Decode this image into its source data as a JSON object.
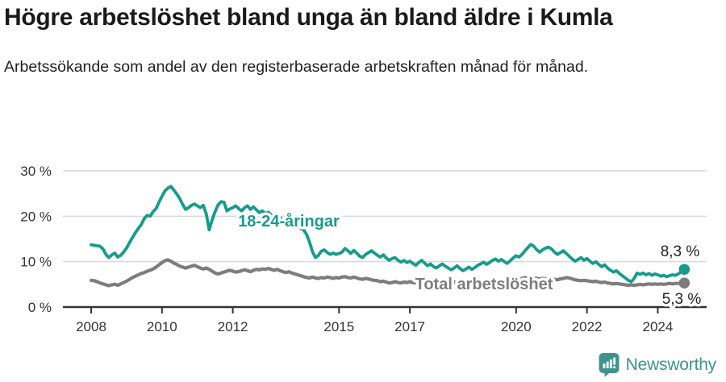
{
  "header": {
    "title": "Högre arbetslöshet bland unga än bland äldre i Kumla",
    "subtitle": "Arbetssökande som andel av den registerbaserade arbetskraften månad för månad."
  },
  "chart": {
    "series_label_youth": "18-24-åringar",
    "series_label_total": "Total arbetslöshet",
    "end_value_youth": "8,3 %",
    "end_value_total": "5,3 %"
  },
  "chart_data": {
    "type": "line",
    "title": "Högre arbetslöshet bland unga än bland äldre i Kumla",
    "subtitle": "Arbetssökande som andel av den registerbaserade arbetskraften månad för månad.",
    "unit": "percent of registered labour force",
    "x_interval": "monthly",
    "x_start": "2008-01",
    "x_end": "2024-10",
    "x_tick_years": [
      "2008",
      "2010",
      "2012",
      "2015",
      "2017",
      "2020",
      "2022",
      "2024"
    ],
    "y_ticks": [
      0,
      10,
      20,
      30
    ],
    "y_tick_labels": [
      "0 %",
      "10 %",
      "20 %",
      "30 %"
    ],
    "ylim": [
      0,
      30
    ],
    "grid": "horizontal",
    "legend_position": "inline-labels",
    "series": [
      {
        "name": "18-24-åringar",
        "color": "#179b8c",
        "end_label": "8,3 %",
        "last_value": 8.3,
        "values": [
          13.7,
          13.6,
          13.5,
          13.4,
          12.8,
          11.6,
          10.9,
          11.5,
          11.9,
          11.0,
          11.4,
          12.1,
          13.0,
          14.2,
          15.3,
          16.4,
          17.3,
          18.2,
          19.5,
          20.2,
          20.0,
          21.0,
          21.7,
          23.1,
          24.4,
          25.6,
          26.2,
          26.6,
          25.8,
          24.9,
          23.9,
          22.6,
          21.5,
          21.9,
          22.4,
          22.7,
          22.3,
          21.9,
          22.4,
          20.5,
          17.0,
          19.2,
          21.0,
          22.5,
          23.2,
          23.1,
          21.2,
          21.6,
          21.9,
          22.3,
          21.7,
          21.2,
          21.9,
          22.3,
          21.5,
          22.1,
          21.4,
          20.8,
          21.2,
          20.6,
          20.9,
          20.3,
          19.8,
          20.4,
          19.7,
          19.0,
          18.4,
          18.9,
          18.2,
          17.6,
          17.9,
          17.3,
          17.0,
          16.0,
          14.3,
          12.2,
          10.9,
          11.4,
          12.3,
          12.6,
          12.0,
          11.6,
          11.9,
          11.6,
          11.8,
          12.1,
          12.9,
          12.4,
          11.8,
          12.5,
          11.9,
          11.2,
          10.9,
          11.6,
          12.0,
          12.4,
          11.9,
          11.4,
          11.0,
          11.5,
          10.8,
          10.3,
          10.7,
          10.9,
          10.3,
          9.9,
          10.3,
          9.8,
          10.1,
          9.6,
          9.2,
          9.8,
          10.3,
          9.7,
          9.1,
          9.5,
          8.9,
          8.6,
          9.1,
          9.5,
          9.0,
          8.6,
          8.2,
          8.6,
          9.1,
          8.5,
          8.0,
          8.4,
          8.8,
          8.3,
          8.7,
          9.2,
          9.5,
          9.9,
          9.4,
          9.8,
          10.3,
          10.6,
          10.1,
          10.5,
          10.0,
          9.6,
          10.2,
          10.8,
          11.3,
          11.0,
          11.6,
          12.4,
          13.1,
          13.8,
          13.4,
          12.6,
          12.1,
          12.6,
          13.0,
          13.2,
          12.8,
          12.1,
          11.6,
          12.0,
          12.4,
          11.8,
          11.2,
          10.6,
          10.1,
          10.5,
          10.9,
          10.3,
          10.7,
          10.1,
          9.6,
          10.0,
          9.4,
          8.9,
          9.3,
          8.6,
          8.1,
          7.7,
          8.0,
          7.4,
          6.9,
          6.4,
          5.9,
          5.6,
          6.3,
          7.5,
          7.2,
          7.5,
          7.1,
          7.4,
          7.0,
          7.3,
          7.1,
          6.8,
          7.0,
          6.7,
          6.9,
          7.1,
          7.0,
          7.3,
          7.8,
          8.3
        ]
      },
      {
        "name": "Total arbetslöshet",
        "color": "#7d7d7d",
        "end_label": "5,3 %",
        "last_value": 5.3,
        "values": [
          5.9,
          5.8,
          5.6,
          5.3,
          5.1,
          4.9,
          4.7,
          4.9,
          5.0,
          4.8,
          5.1,
          5.4,
          5.7,
          6.1,
          6.5,
          6.8,
          7.1,
          7.4,
          7.6,
          7.9,
          8.1,
          8.4,
          8.8,
          9.3,
          9.8,
          10.2,
          10.4,
          10.1,
          9.7,
          9.4,
          9.0,
          8.8,
          8.6,
          8.8,
          9.0,
          9.2,
          8.9,
          8.6,
          8.4,
          8.6,
          8.3,
          7.9,
          7.5,
          7.3,
          7.5,
          7.7,
          7.9,
          8.1,
          7.9,
          7.7,
          7.8,
          8.0,
          8.2,
          8.0,
          7.8,
          8.1,
          8.3,
          8.2,
          8.4,
          8.3,
          8.5,
          8.3,
          8.1,
          8.3,
          8.0,
          7.8,
          7.6,
          7.8,
          7.5,
          7.3,
          7.1,
          6.9,
          6.7,
          6.5,
          6.4,
          6.6,
          6.4,
          6.3,
          6.5,
          6.4,
          6.6,
          6.5,
          6.3,
          6.5,
          6.4,
          6.6,
          6.7,
          6.5,
          6.4,
          6.6,
          6.4,
          6.2,
          6.1,
          6.3,
          6.2,
          6.0,
          5.9,
          5.8,
          5.6,
          5.7,
          5.5,
          5.3,
          5.4,
          5.6,
          5.4,
          5.3,
          5.5,
          5.4,
          5.6,
          5.4,
          5.3,
          5.5,
          5.7,
          5.5,
          5.3,
          5.6,
          5.8,
          5.6,
          5.5,
          5.7,
          5.6,
          5.4,
          5.3,
          5.5,
          5.4,
          5.2,
          5.4,
          5.5,
          5.3,
          5.4,
          5.6,
          5.5,
          5.6,
          5.5,
          5.4,
          5.6,
          5.5,
          5.7,
          5.6,
          5.8,
          5.7,
          5.6,
          5.8,
          6.0,
          6.2,
          6.1,
          6.3,
          6.5,
          6.4,
          6.5,
          6.4,
          6.3,
          6.2,
          6.3,
          6.2,
          6.1,
          6.2,
          6.1,
          6.0,
          6.2,
          6.3,
          6.5,
          6.4,
          6.2,
          6.0,
          5.9,
          5.8,
          5.9,
          5.8,
          5.7,
          5.6,
          5.7,
          5.5,
          5.4,
          5.5,
          5.3,
          5.2,
          5.1,
          5.2,
          5.1,
          5.0,
          4.9,
          4.8,
          4.9,
          4.8,
          4.9,
          5.0,
          4.9,
          5.0,
          5.1,
          5.0,
          5.1,
          5.0,
          5.1,
          5.0,
          5.1,
          5.2,
          5.1,
          5.2,
          5.2,
          5.3,
          5.3
        ]
      }
    ]
  },
  "footer": {
    "brand": "Newsworthy"
  },
  "colors": {
    "accent_teal": "#179b8c",
    "line_gray": "#7d7d7d",
    "axis_text": "#333333",
    "grid_line": "#d9d9d9",
    "axis_line": "#333333",
    "brand_teal": "#3e938e",
    "title_text": "#1a1a1a"
  }
}
